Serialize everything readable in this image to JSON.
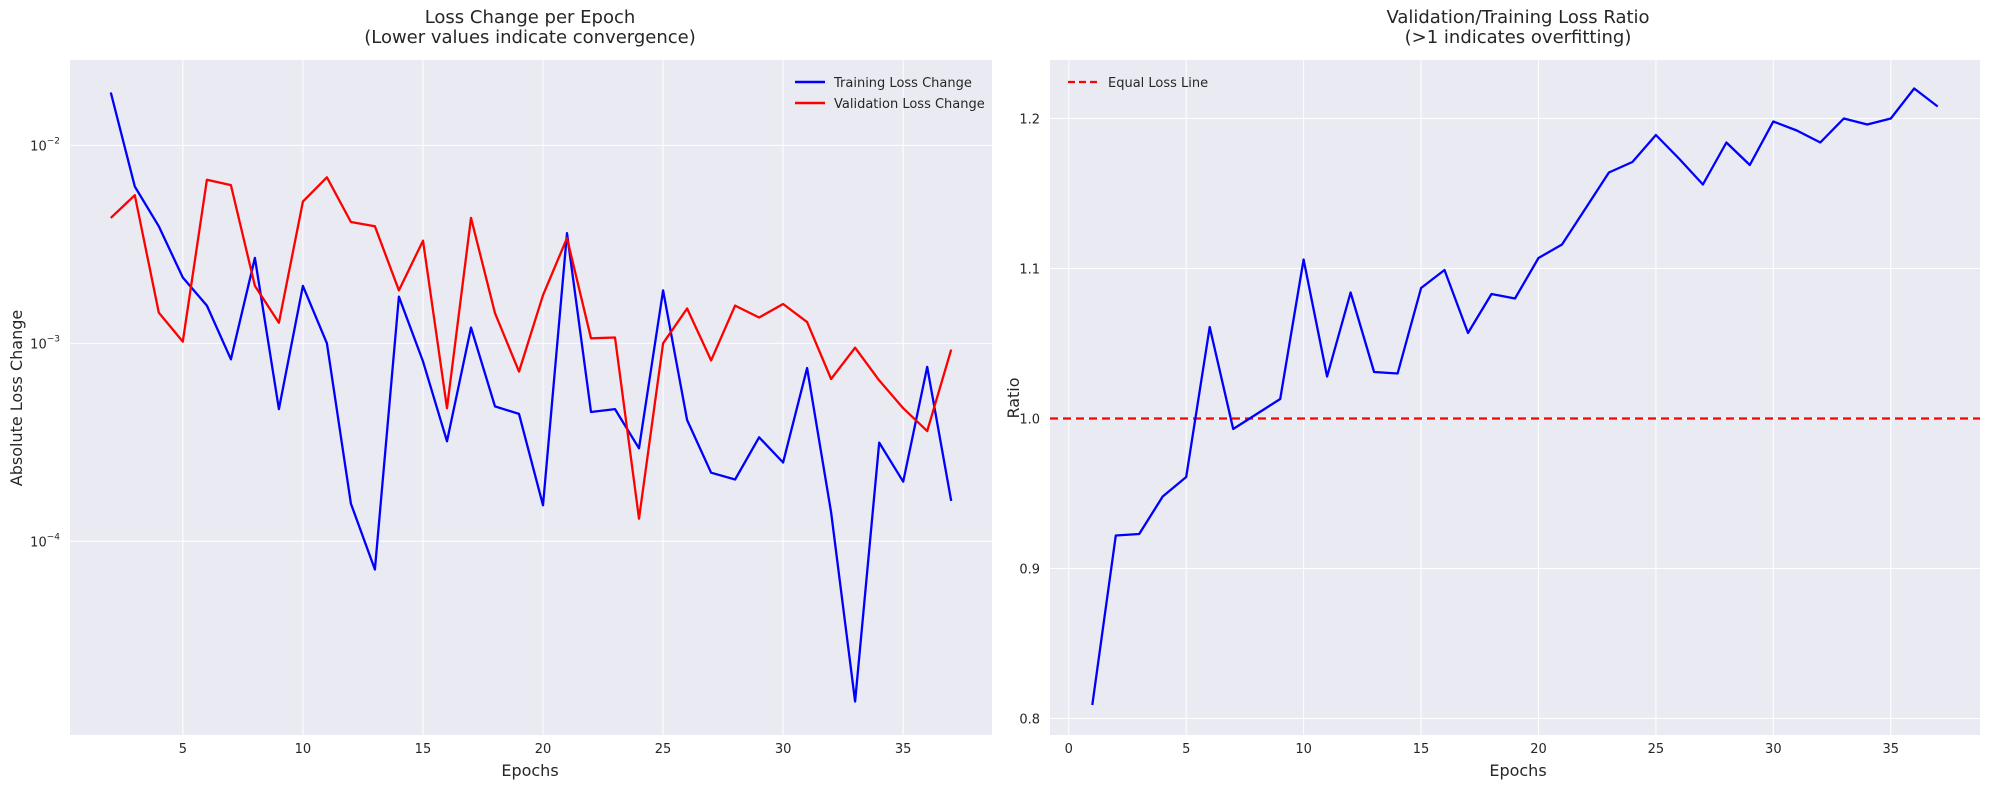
{
  "chart_data": [
    {
      "type": "line",
      "title": "Loss Change per Epoch",
      "subtitle": "(Lower values indicate convergence)",
      "xlabel": "Epochs",
      "ylabel": "Absolute Loss Change",
      "yscale": "log",
      "xlim": [
        0.3,
        38.7
      ],
      "ylim": [
        1.05e-05,
        0.027
      ],
      "xticks": [
        5,
        10,
        15,
        20,
        25,
        30,
        35
      ],
      "yticks": [
        {
          "value": 0.01,
          "base": "10",
          "exp": "−2"
        },
        {
          "value": 0.001,
          "base": "10",
          "exp": "−3"
        },
        {
          "value": 0.0001,
          "base": "10",
          "exp": "−4"
        }
      ],
      "grid": true,
      "legend": "top-right",
      "x": [
        2,
        3,
        4,
        5,
        6,
        7,
        8,
        9,
        10,
        11,
        12,
        13,
        14,
        15,
        16,
        17,
        18,
        19,
        20,
        21,
        22,
        23,
        24,
        25,
        26,
        27,
        28,
        29,
        30,
        31,
        32,
        33,
        34,
        35,
        36,
        37
      ],
      "series": [
        {
          "name": "Training Loss Change",
          "color": "#0000ff",
          "values": [
            0.0185,
            0.0062,
            0.0039,
            0.00215,
            0.00155,
            0.00083,
            0.0027,
            0.000465,
            0.00195,
            0.001,
            0.000155,
            7.2e-05,
            0.00172,
            0.00081,
            0.00032,
            0.0012,
            0.00048,
            0.00044,
            0.000152,
            0.0036,
            0.00045,
            0.000465,
            0.000295,
            0.00185,
            0.00041,
            0.000222,
            0.000205,
            0.000335,
            0.00025,
            0.00075,
            0.00014,
            1.55e-05,
            0.000315,
            0.0002,
            0.00076,
            0.00016
          ]
        },
        {
          "name": "Validation Loss Change",
          "color": "#ff0000",
          "values": [
            0.0043,
            0.0056,
            0.00143,
            0.00102,
            0.0067,
            0.0063,
            0.00195,
            0.00127,
            0.0052,
            0.0069,
            0.0041,
            0.0039,
            0.00185,
            0.0033,
            0.00047,
            0.0043,
            0.00142,
            0.00072,
            0.00175,
            0.0034,
            0.00106,
            0.00107,
            0.00013,
            0.001,
            0.0015,
            0.00082,
            0.00155,
            0.00135,
            0.00158,
            0.00128,
            0.00066,
            0.00095,
            0.00065,
            0.00047,
            0.00036,
            0.00093
          ]
        }
      ]
    },
    {
      "type": "line",
      "title": "Validation/Training Loss Ratio",
      "subtitle": "(>1 indicates overfitting)",
      "xlabel": "Epochs",
      "ylabel": "Ratio",
      "xlim": [
        -0.8,
        38.8
      ],
      "ylim": [
        0.789,
        1.239
      ],
      "xticks": [
        0,
        5,
        10,
        15,
        20,
        25,
        30,
        35
      ],
      "yticks": [
        0.8,
        0.9,
        1.0,
        1.1,
        1.2
      ],
      "ytick_labels": [
        "0.8",
        "0.9",
        "1.0",
        "1.1",
        "1.2"
      ],
      "grid": true,
      "legend": "top-left",
      "reference_line": {
        "name": "Equal Loss Line",
        "y": 1.0,
        "color": "#ff0000",
        "style": "dashed"
      },
      "x": [
        1,
        2,
        3,
        4,
        5,
        6,
        7,
        8,
        9,
        10,
        11,
        12,
        13,
        14,
        15,
        16,
        17,
        18,
        19,
        20,
        21,
        22,
        23,
        24,
        25,
        26,
        27,
        28,
        29,
        30,
        31,
        32,
        33,
        34,
        35,
        36,
        37
      ],
      "series": [
        {
          "color": "#0000ff",
          "values": [
            0.809,
            0.922,
            0.923,
            0.948,
            0.961,
            1.061,
            0.993,
            1.003,
            1.013,
            1.106,
            1.028,
            1.084,
            1.031,
            1.03,
            1.087,
            1.099,
            1.057,
            1.083,
            1.08,
            1.107,
            1.116,
            1.14,
            1.164,
            1.171,
            1.189,
            1.173,
            1.156,
            1.184,
            1.169,
            1.198,
            1.192,
            1.184,
            1.2,
            1.196,
            1.2,
            1.22,
            1.208
          ]
        }
      ]
    }
  ]
}
